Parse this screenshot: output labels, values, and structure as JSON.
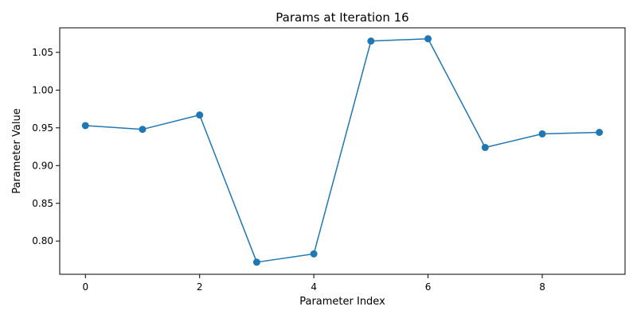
{
  "chart_data": {
    "type": "line",
    "title": "Params at Iteration 16",
    "xlabel": "Parameter Index",
    "ylabel": "Parameter Value",
    "x": [
      0,
      1,
      2,
      3,
      4,
      5,
      6,
      7,
      8,
      9
    ],
    "series": [
      {
        "values": [
          0.953,
          0.948,
          0.967,
          0.772,
          0.783,
          1.065,
          1.068,
          0.924,
          0.942,
          0.944
        ],
        "color": "#1f77b4",
        "marker": "circle"
      }
    ],
    "xlim": [
      -0.45,
      9.45
    ],
    "ylim": [
      0.756,
      1.0825
    ],
    "xticks": [
      0,
      2,
      4,
      6,
      8
    ],
    "xtick_labels": [
      "0",
      "2",
      "4",
      "6",
      "8"
    ],
    "yticks": [
      0.8,
      0.85,
      0.9,
      0.95,
      1.0,
      1.05
    ],
    "ytick_labels": [
      "0.80",
      "0.85",
      "0.90",
      "0.95",
      "1.00",
      "1.05"
    ],
    "grid": false,
    "legend": "none"
  }
}
